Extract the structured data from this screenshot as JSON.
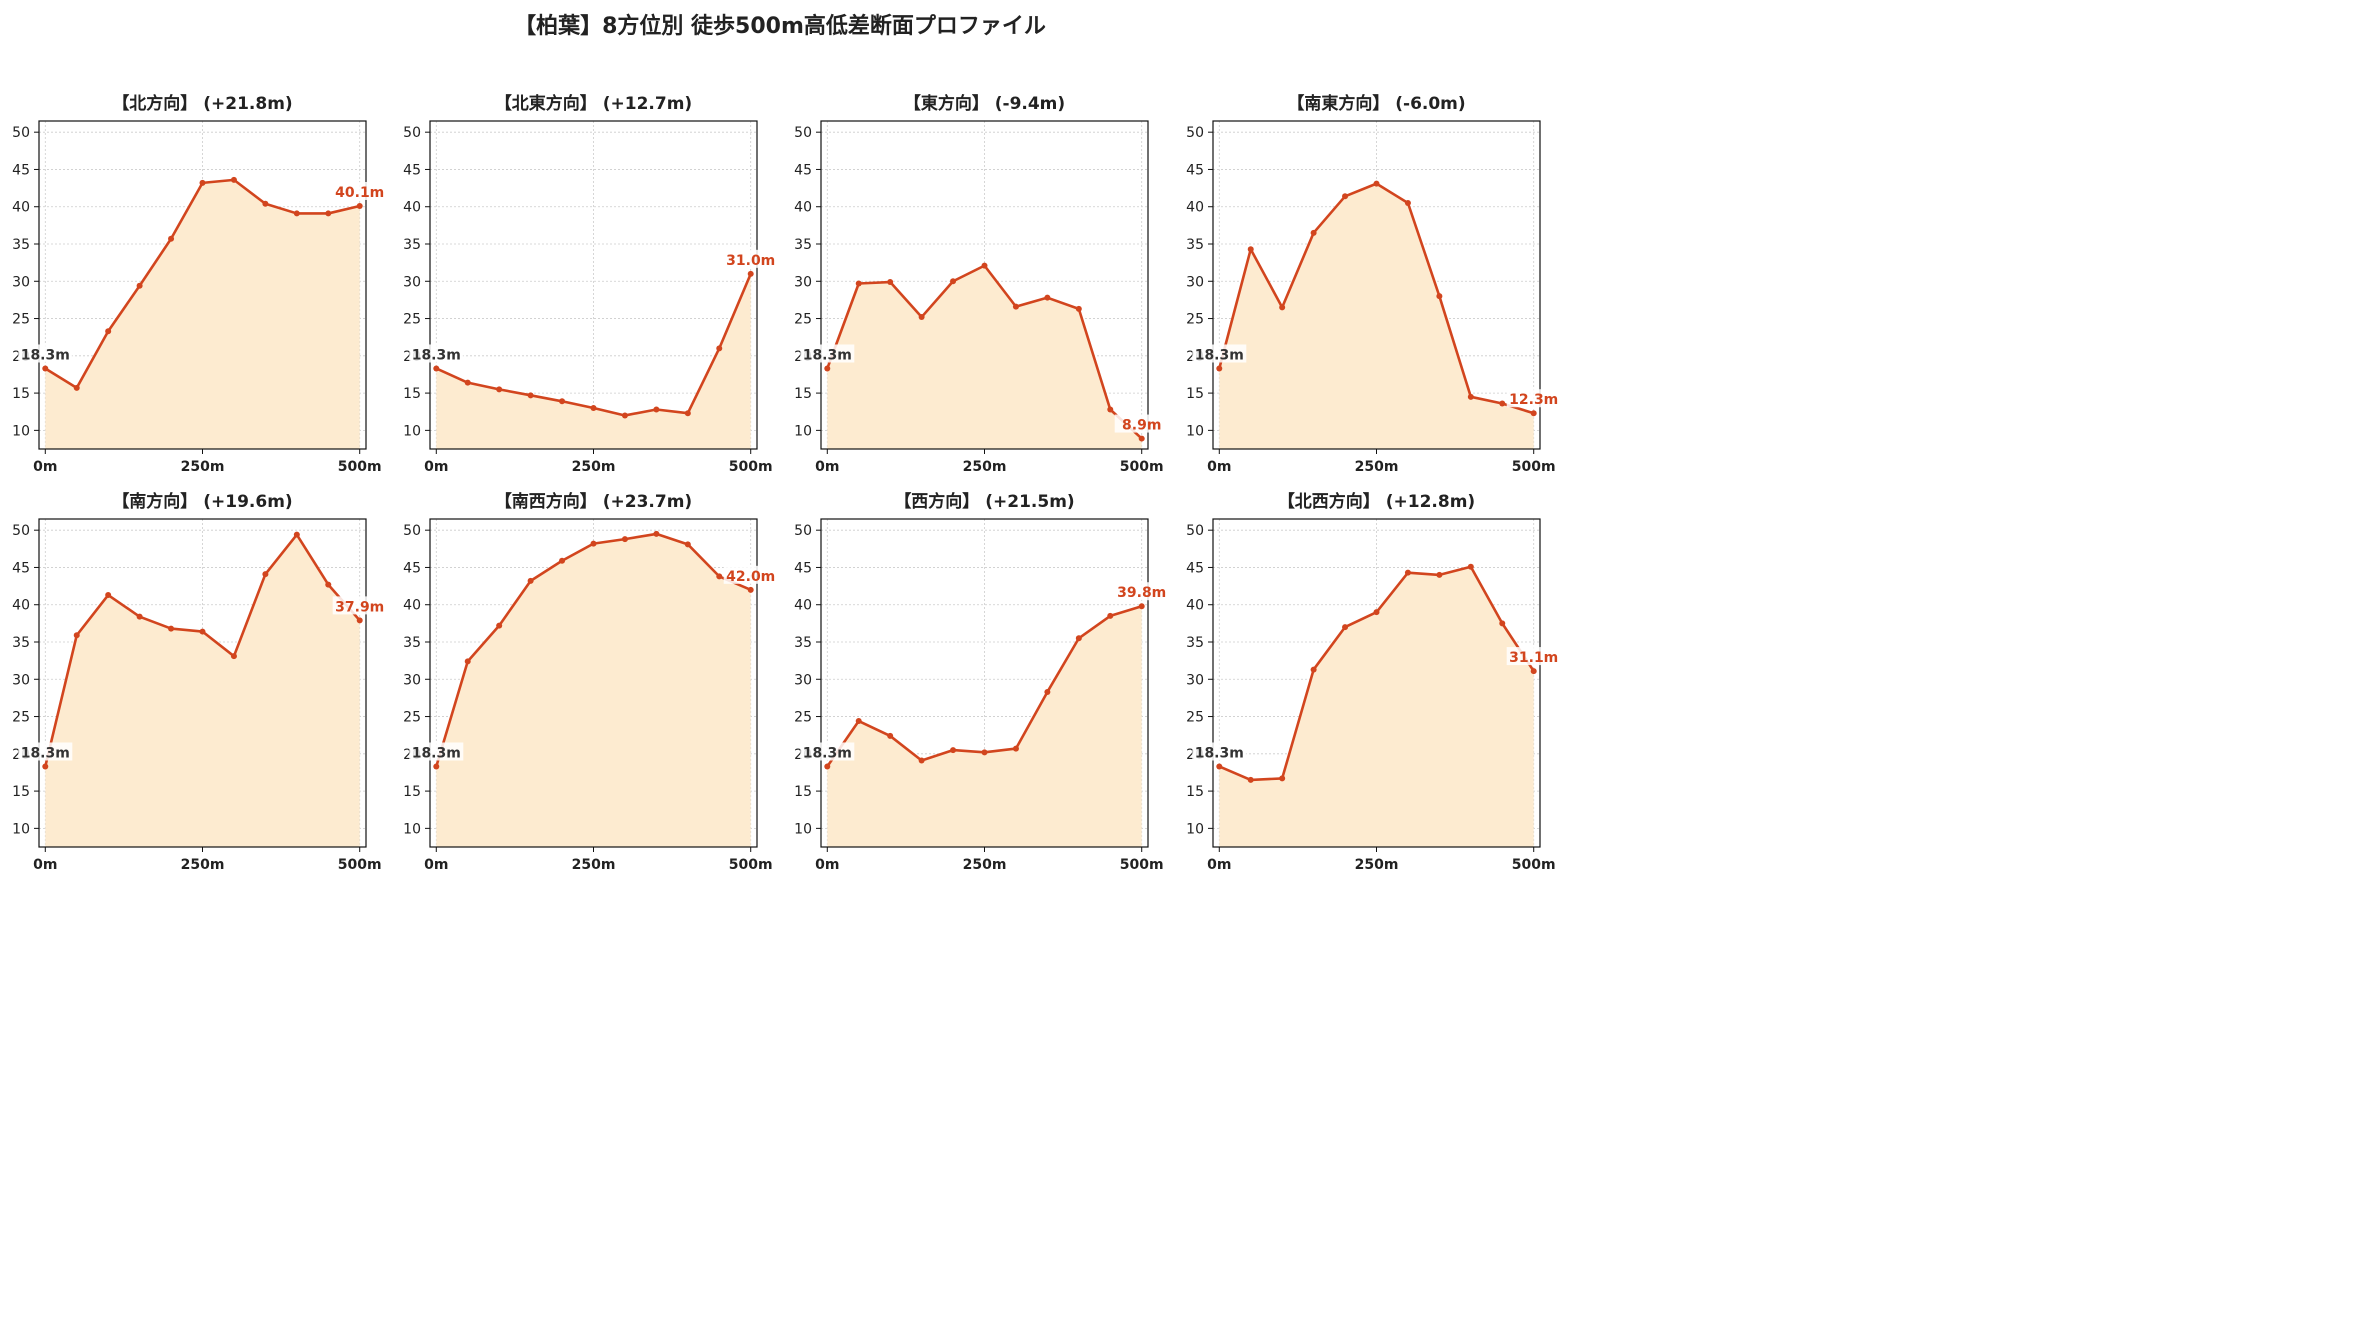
{
  "title": "【柏葉】8方位別 徒歩500m高低差断面プロファイル",
  "colors": {
    "line": "#d2451e",
    "fill": "#fdebd0",
    "grid": "#cccccc",
    "label_start": "#333333",
    "label_end": "#d2451e"
  },
  "chart_data": [
    {
      "type": "area",
      "title": "【北方向】 (+21.8m)",
      "x": [
        0,
        50,
        100,
        150,
        200,
        250,
        300,
        350,
        400,
        450,
        500
      ],
      "values": [
        18.3,
        15.7,
        23.3,
        29.4,
        35.7,
        43.2,
        43.6,
        40.4,
        39.1,
        39.1,
        40.1
      ],
      "start_label": "18.3m",
      "end_label": "40.1m",
      "xticks": [
        "0m",
        "250m",
        "500m"
      ],
      "yticks": [
        10,
        15,
        20,
        25,
        30,
        35,
        40,
        45,
        50
      ],
      "ylim": [
        7.5,
        51.5
      ],
      "xlim": [
        -10,
        510
      ],
      "grid": true
    },
    {
      "type": "area",
      "title": "【北東方向】 (+12.7m)",
      "x": [
        0,
        50,
        100,
        150,
        200,
        250,
        300,
        350,
        400,
        450,
        500
      ],
      "values": [
        18.3,
        16.4,
        15.5,
        14.7,
        13.9,
        13.0,
        12.0,
        12.8,
        12.3,
        21.0,
        31.0
      ],
      "start_label": "18.3m",
      "end_label": "31.0m",
      "xticks": [
        "0m",
        "250m",
        "500m"
      ],
      "yticks": [
        10,
        15,
        20,
        25,
        30,
        35,
        40,
        45,
        50
      ],
      "ylim": [
        7.5,
        51.5
      ],
      "xlim": [
        -10,
        510
      ],
      "grid": true
    },
    {
      "type": "area",
      "title": "【東方向】 (-9.4m)",
      "x": [
        0,
        50,
        100,
        150,
        200,
        250,
        300,
        350,
        400,
        450,
        500
      ],
      "values": [
        18.3,
        29.7,
        29.9,
        25.2,
        30.0,
        32.1,
        26.6,
        27.8,
        26.3,
        12.8,
        8.9
      ],
      "start_label": "18.3m",
      "end_label": "8.9m",
      "xticks": [
        "0m",
        "250m",
        "500m"
      ],
      "yticks": [
        10,
        15,
        20,
        25,
        30,
        35,
        40,
        45,
        50
      ],
      "ylim": [
        7.5,
        51.5
      ],
      "xlim": [
        -10,
        510
      ],
      "grid": true
    },
    {
      "type": "area",
      "title": "【南東方向】 (-6.0m)",
      "x": [
        0,
        50,
        100,
        150,
        200,
        250,
        300,
        350,
        400,
        450,
        500
      ],
      "values": [
        18.3,
        34.3,
        26.5,
        36.5,
        41.4,
        43.1,
        40.5,
        28.0,
        14.5,
        13.6,
        12.3
      ],
      "start_label": "18.3m",
      "end_label": "12.3m",
      "xticks": [
        "0m",
        "250m",
        "500m"
      ],
      "yticks": [
        10,
        15,
        20,
        25,
        30,
        35,
        40,
        45,
        50
      ],
      "ylim": [
        7.5,
        51.5
      ],
      "xlim": [
        -10,
        510
      ],
      "grid": true
    },
    {
      "type": "area",
      "title": "【南方向】 (+19.6m)",
      "x": [
        0,
        50,
        100,
        150,
        200,
        250,
        300,
        350,
        400,
        450,
        500
      ],
      "values": [
        18.3,
        35.9,
        41.3,
        38.4,
        36.8,
        36.4,
        33.1,
        44.1,
        49.4,
        42.7,
        37.9
      ],
      "start_label": "18.3m",
      "end_label": "37.9m",
      "xticks": [
        "0m",
        "250m",
        "500m"
      ],
      "yticks": [
        10,
        15,
        20,
        25,
        30,
        35,
        40,
        45,
        50
      ],
      "ylim": [
        7.5,
        51.5
      ],
      "xlim": [
        -10,
        510
      ],
      "grid": true
    },
    {
      "type": "area",
      "title": "【南西方向】 (+23.7m)",
      "x": [
        0,
        50,
        100,
        150,
        200,
        250,
        300,
        350,
        400,
        450,
        500
      ],
      "values": [
        18.3,
        32.4,
        37.2,
        43.2,
        45.9,
        48.2,
        48.8,
        49.5,
        48.1,
        43.8,
        42.0
      ],
      "start_label": "18.3m",
      "end_label": "42.0m",
      "xticks": [
        "0m",
        "250m",
        "500m"
      ],
      "yticks": [
        10,
        15,
        20,
        25,
        30,
        35,
        40,
        45,
        50
      ],
      "ylim": [
        7.5,
        51.5
      ],
      "xlim": [
        -10,
        510
      ],
      "grid": true
    },
    {
      "type": "area",
      "title": "【西方向】 (+21.5m)",
      "x": [
        0,
        50,
        100,
        150,
        200,
        250,
        300,
        350,
        400,
        450,
        500
      ],
      "values": [
        18.3,
        24.4,
        22.4,
        19.1,
        20.5,
        20.2,
        20.7,
        28.3,
        35.5,
        38.5,
        39.8
      ],
      "start_label": "18.3m",
      "end_label": "39.8m",
      "xticks": [
        "0m",
        "250m",
        "500m"
      ],
      "yticks": [
        10,
        15,
        20,
        25,
        30,
        35,
        40,
        45,
        50
      ],
      "ylim": [
        7.5,
        51.5
      ],
      "xlim": [
        -10,
        510
      ],
      "grid": true
    },
    {
      "type": "area",
      "title": "【北西方向】 (+12.8m)",
      "x": [
        0,
        50,
        100,
        150,
        200,
        250,
        300,
        350,
        400,
        450,
        500
      ],
      "values": [
        18.3,
        16.5,
        16.7,
        31.3,
        37.0,
        39.0,
        44.3,
        44.0,
        45.1,
        37.5,
        31.1
      ],
      "start_label": "18.3m",
      "end_label": "31.1m",
      "xticks": [
        "0m",
        "250m",
        "500m"
      ],
      "yticks": [
        10,
        15,
        20,
        25,
        30,
        35,
        40,
        45,
        50
      ],
      "ylim": [
        7.5,
        51.5
      ],
      "xlim": [
        -10,
        510
      ],
      "grid": true
    }
  ]
}
